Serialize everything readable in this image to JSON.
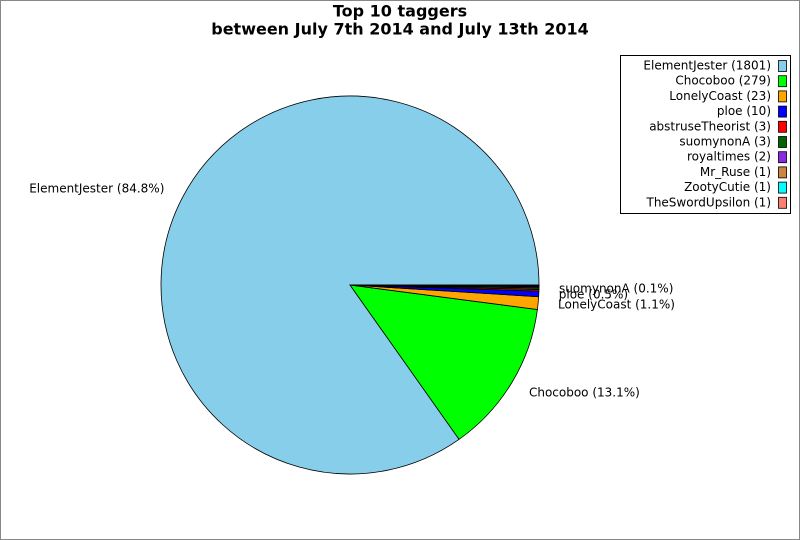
{
  "chart_data": {
    "type": "pie",
    "title": "Top 10 taggers",
    "subtitle": "between July 7th 2014 and July 13th 2014",
    "categories": [
      "ElementJester (1801)",
      "Chocoboo (279)",
      "LonelyCoast (23)",
      "ploe (10)",
      "abstruseTheorist (3)",
      "suomynonA (3)",
      "royaltimes (2)",
      "Mr_Ruse (1)",
      "ZootyCutie (1)",
      "TheSwordUpsilon (1)"
    ],
    "values": [
      1801,
      279,
      23,
      10,
      3,
      3,
      2,
      1,
      1,
      1
    ],
    "value_labels": [
      "ElementJester (84.8%)",
      "Chocoboo (13.1%)",
      "LonelyCoast (1.1%)",
      "ploe (0.5%)",
      null,
      "suomynonA (0.1%)",
      null,
      null,
      null,
      null
    ],
    "colors": [
      "#87ceeb",
      "#00ff00",
      "#ffa500",
      "#0000ff",
      "#ff0000",
      "#006400",
      "#8a2be2",
      "#cd853f",
      "#00ffff",
      "#fa8072"
    ],
    "legend": "upper right"
  }
}
